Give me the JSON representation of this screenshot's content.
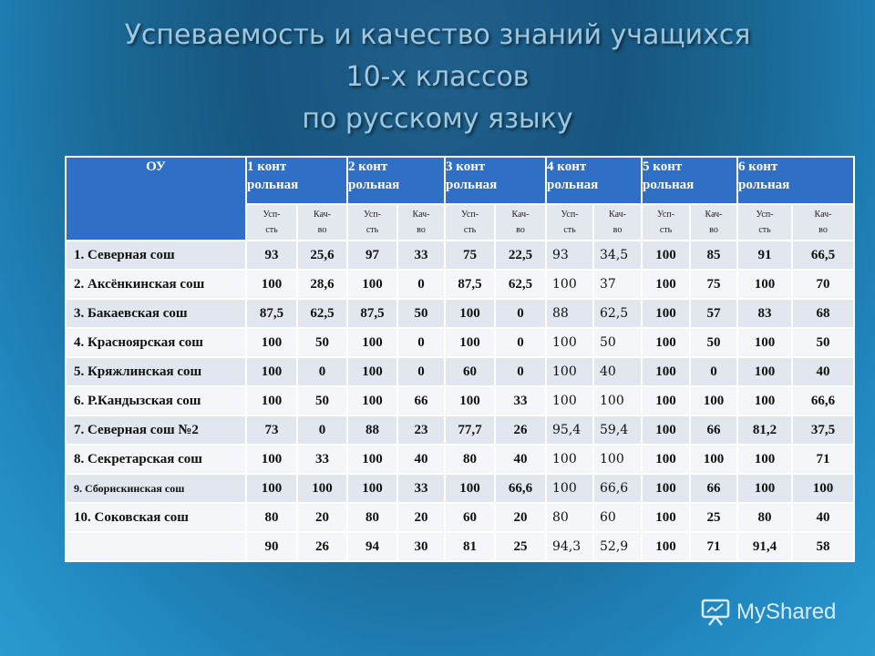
{
  "title": {
    "line1": "Успеваемость и качество знаний учащихся",
    "line2": "10-х классов",
    "line3": "по русскому языку"
  },
  "table": {
    "ou_header": "ОУ",
    "control_headers": [
      [
        "1 конт",
        "рольная"
      ],
      [
        "2 конт",
        "рольная"
      ],
      [
        "3 конт",
        "рольная"
      ],
      [
        "4 конт",
        "рольная"
      ],
      [
        "5 конт",
        "рольная"
      ],
      [
        "6 конт",
        "рольная"
      ]
    ],
    "sub_headers": {
      "usp": [
        "Усп-",
        "сть"
      ],
      "kach": [
        "Кач-",
        "во"
      ]
    },
    "rows": [
      {
        "name": "1. Северная сош",
        "values": [
          "93",
          "25,6",
          "97",
          "33",
          "75",
          "22,5",
          "93",
          "34,5",
          "100",
          "85",
          "91",
          "66,5"
        ]
      },
      {
        "name": "2. Аксёнкинская сош",
        "values": [
          "100",
          "28,6",
          "100",
          "0",
          "87,5",
          "62,5",
          "100",
          "37",
          "100",
          "75",
          "100",
          "70"
        ]
      },
      {
        "name": "3. Бакаевская сош",
        "values": [
          "87,5",
          "62,5",
          "87,5",
          "50",
          "100",
          "0",
          "88",
          "62,5",
          "100",
          "57",
          "83",
          "68"
        ]
      },
      {
        "name": "4. Красноярская сош",
        "values": [
          "100",
          "50",
          "100",
          "0",
          "100",
          "0",
          "100",
          "50",
          "100",
          "50",
          "100",
          "50"
        ]
      },
      {
        "name": "5. Кряжлинская сош",
        "values": [
          "100",
          "0",
          "100",
          "0",
          "60",
          "0",
          "100",
          "40",
          "100",
          "0",
          "100",
          "40"
        ]
      },
      {
        "name": "6. Р.Кандызская сош",
        "values": [
          "100",
          "50",
          "100",
          "66",
          "100",
          "33",
          "100",
          "100",
          "100",
          "100",
          "100",
          "66,6"
        ]
      },
      {
        "name": "7. Северная сош №2",
        "values": [
          "73",
          "0",
          "88",
          "23",
          "77,7",
          "26",
          "95,4",
          "59,4",
          "100",
          "66",
          "81,2",
          "37,5"
        ]
      },
      {
        "name": "8. Секретарская сош",
        "values": [
          "100",
          "33",
          "100",
          "40",
          "80",
          "40",
          "100",
          "100",
          "100",
          "100",
          "100",
          "71"
        ]
      },
      {
        "name": "9. Сборискинская сош",
        "values": [
          "100",
          "100",
          "100",
          "33",
          "100",
          "66,6",
          "100",
          "66,6",
          "100",
          "66",
          "100",
          "100"
        ]
      },
      {
        "name": "10. Соковская сош",
        "values": [
          "80",
          "20",
          "80",
          "20",
          "60",
          "20",
          "80",
          "60",
          "100",
          "25",
          "80",
          "40"
        ]
      },
      {
        "name": "",
        "values": [
          "90",
          "26",
          "94",
          "30",
          "81",
          "25",
          "94,3",
          "52,9",
          "100",
          "71",
          "91,4",
          "58"
        ]
      }
    ]
  },
  "watermark": {
    "text": "MyShared",
    "icon": "presentation-board-icon"
  }
}
